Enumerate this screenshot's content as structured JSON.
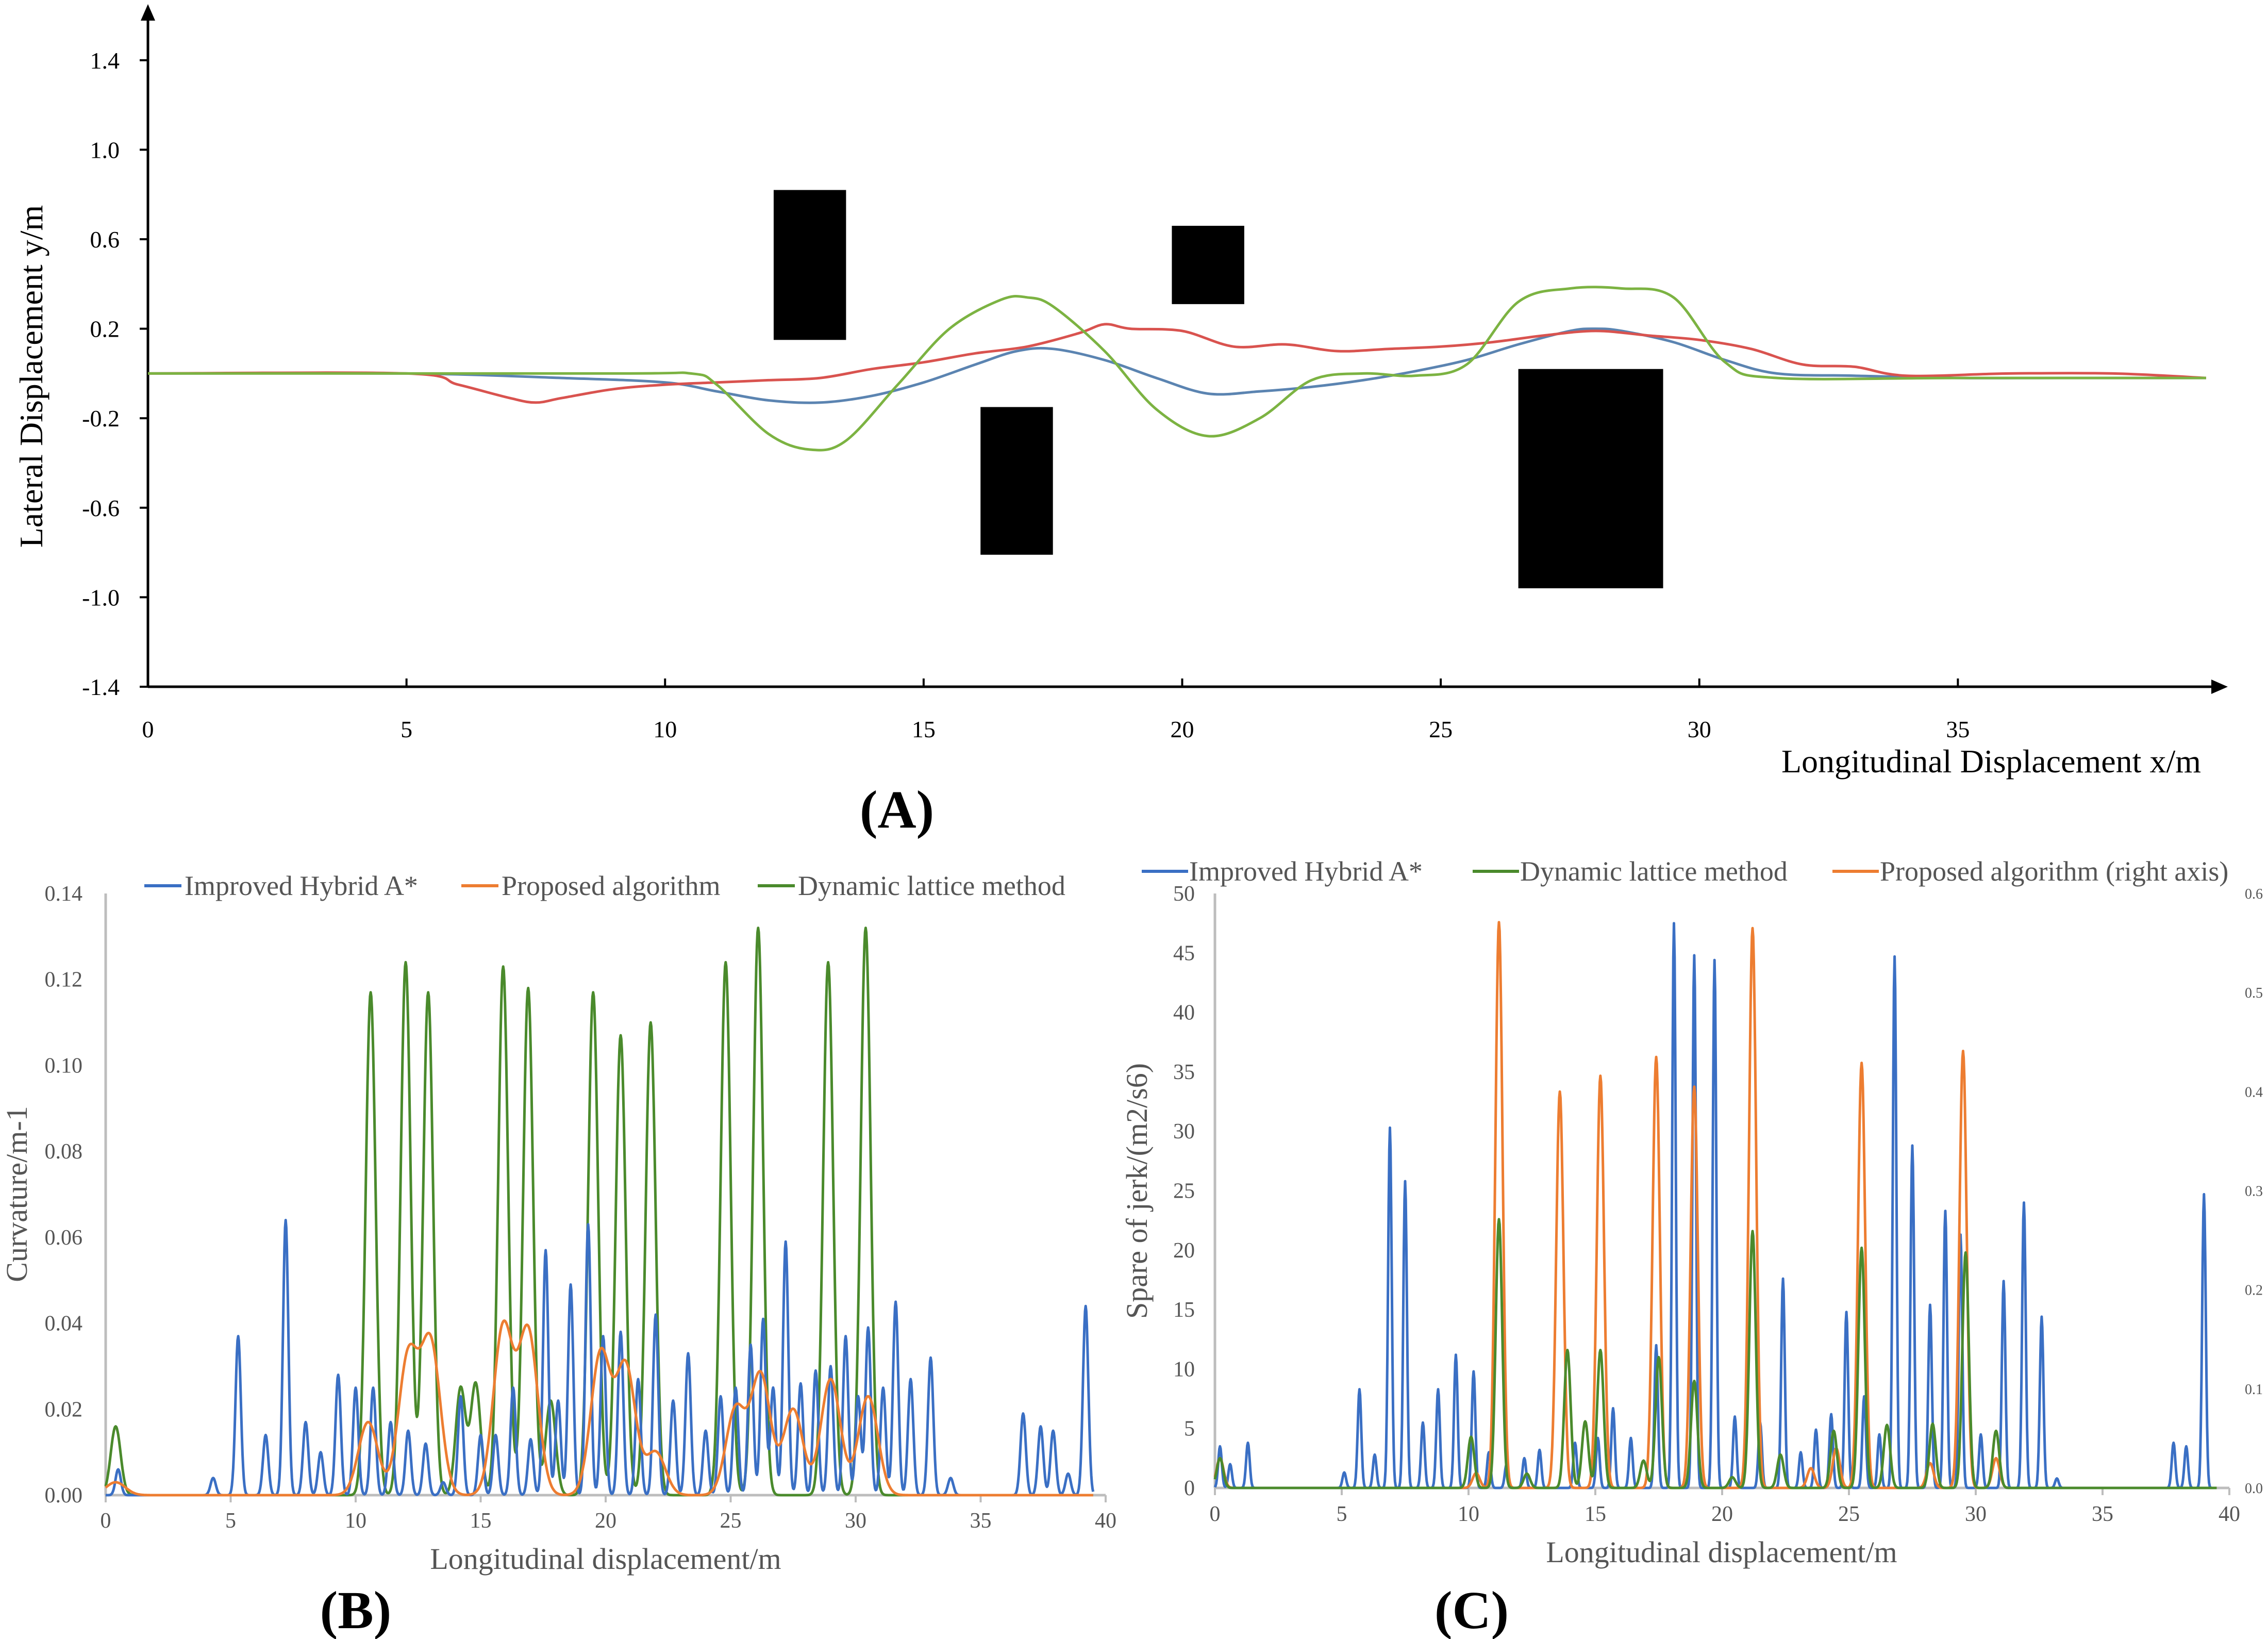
{
  "colors": {
    "hybrid_a_path": "#5b84b1",
    "proposed_path": "#d9534f",
    "lattice_path": "#7cb342",
    "blue": "#3a6fc4",
    "orange": "#ed7d31",
    "green": "#4a8a2c",
    "obstacle": "#000000"
  },
  "chart_data": [
    {
      "id": "A",
      "type": "line",
      "panel_label": "(A)",
      "xlabel": "Longitudinal Displacement  x/m",
      "ylabel": "Lateral Displacement  y/m",
      "xlim": [
        0,
        40
      ],
      "ylim": [
        -1.4,
        1.6
      ],
      "x_ticks": [
        "0",
        "5",
        "10",
        "15",
        "20",
        "25",
        "30",
        "35"
      ],
      "y_ticks": [
        "-1.4",
        "-1.0",
        "-0.6",
        "-0.2",
        "0.2",
        "0.6",
        "1.0",
        "1.4"
      ],
      "obstacles": [
        {
          "x0": 12.1,
          "x1": 13.5,
          "y0": 0.15,
          "y1": 0.82
        },
        {
          "x0": 16.1,
          "x1": 17.5,
          "y0": -0.81,
          "y1": -0.15
        },
        {
          "x0": 19.8,
          "x1": 21.2,
          "y0": 0.31,
          "y1": 0.66
        },
        {
          "x0": 26.5,
          "x1": 29.3,
          "y0": -0.96,
          "y1": 0.02
        }
      ],
      "series": [
        {
          "name": "Improved Hybrid A*",
          "color": "#5b84b1",
          "x": [
            0,
            5,
            8,
            10,
            11,
            12,
            13,
            14,
            15,
            16,
            16.8,
            17.5,
            18.5,
            19.5,
            20.5,
            21.5,
            22.5,
            23.5,
            24.5,
            25.5,
            26.5,
            27.5,
            28,
            28.5,
            29.5,
            30.5,
            31.5,
            33,
            35,
            37,
            39.8
          ],
          "y": [
            0,
            0,
            -0.02,
            -0.04,
            -0.08,
            -0.12,
            -0.13,
            -0.1,
            -0.04,
            0.04,
            0.1,
            0.11,
            0.06,
            -0.02,
            -0.09,
            -0.08,
            -0.06,
            -0.03,
            0.01,
            0.06,
            0.13,
            0.19,
            0.2,
            0.19,
            0.14,
            0.06,
            0.0,
            -0.01,
            -0.02,
            -0.02,
            -0.02
          ]
        },
        {
          "name": "Proposed algorithm",
          "color": "#d9534f",
          "x": [
            0,
            5,
            6,
            7,
            7.5,
            8,
            9,
            10,
            11,
            12,
            13,
            14,
            15,
            16,
            17,
            18,
            18.5,
            19,
            20,
            21,
            22,
            23,
            24,
            25,
            26,
            27,
            28,
            29,
            30,
            31,
            32,
            33,
            34,
            36,
            38,
            39.8
          ],
          "y": [
            0,
            0,
            -0.05,
            -0.11,
            -0.13,
            -0.11,
            -0.07,
            -0.05,
            -0.04,
            -0.03,
            -0.02,
            0.02,
            0.05,
            0.09,
            0.12,
            0.18,
            0.22,
            0.2,
            0.19,
            0.12,
            0.13,
            0.1,
            0.11,
            0.12,
            0.14,
            0.17,
            0.19,
            0.17,
            0.15,
            0.11,
            0.04,
            0.03,
            -0.01,
            0.0,
            0.0,
            -0.02
          ]
        },
        {
          "name": "Dynamic lattice method",
          "color": "#7cb342",
          "x": [
            0,
            9,
            10.5,
            11,
            12,
            12.8,
            13.5,
            14.5,
            15.5,
            16.5,
            17,
            17.5,
            18.5,
            19.5,
            20.5,
            21.5,
            22.5,
            23.5,
            24.5,
            25.5,
            26.5,
            27.5,
            28.5,
            29.5,
            30.5,
            31.5,
            35,
            39.8
          ],
          "y": [
            0,
            0,
            0.0,
            -0.05,
            -0.27,
            -0.34,
            -0.3,
            -0.05,
            0.2,
            0.33,
            0.34,
            0.3,
            0.1,
            -0.16,
            -0.28,
            -0.2,
            -0.03,
            0.0,
            -0.01,
            0.04,
            0.32,
            0.38,
            0.38,
            0.34,
            0.05,
            -0.02,
            -0.02,
            -0.02
          ]
        }
      ]
    },
    {
      "id": "B",
      "type": "line",
      "panel_label": "(B)",
      "xlabel": "Longitudinal displacement/m",
      "ylabel": "Curvature/m-1",
      "xlim": [
        0,
        40
      ],
      "ylim": [
        0,
        0.14
      ],
      "x_ticks": [
        "0",
        "5",
        "10",
        "15",
        "20",
        "25",
        "30",
        "35",
        "40"
      ],
      "y_ticks": [
        "0.00",
        "0.02",
        "0.04",
        "0.06",
        "0.08",
        "0.10",
        "0.12",
        "0.14"
      ],
      "legend": [
        "Improved Hybrid A*",
        "Proposed algorithm",
        "Dynamic lattice method"
      ],
      "series": [
        {
          "name": "Improved Hybrid A*",
          "color": "#3a6fc4",
          "width": 0.15,
          "peaks": [
            [
              0.5,
              0.006
            ],
            [
              4.3,
              0.004
            ],
            [
              5.3,
              0.037
            ],
            [
              6.4,
              0.014
            ],
            [
              7.2,
              0.064
            ],
            [
              8.0,
              0.017
            ],
            [
              8.6,
              0.01
            ],
            [
              9.3,
              0.028
            ],
            [
              10.0,
              0.025
            ],
            [
              10.7,
              0.025
            ],
            [
              11.4,
              0.017
            ],
            [
              12.1,
              0.015
            ],
            [
              12.8,
              0.012
            ],
            [
              13.5,
              0.003
            ],
            [
              14.2,
              0.023
            ],
            [
              15.0,
              0.014
            ],
            [
              15.6,
              0.014
            ],
            [
              16.3,
              0.025
            ],
            [
              17.0,
              0.013
            ],
            [
              17.6,
              0.057
            ],
            [
              18.1,
              0.022
            ],
            [
              18.6,
              0.049
            ],
            [
              19.3,
              0.063
            ],
            [
              19.9,
              0.037
            ],
            [
              20.6,
              0.038
            ],
            [
              21.3,
              0.027
            ],
            [
              22.0,
              0.042
            ],
            [
              22.7,
              0.022
            ],
            [
              23.3,
              0.033
            ],
            [
              24.0,
              0.015
            ],
            [
              24.6,
              0.023
            ],
            [
              25.2,
              0.025
            ],
            [
              25.8,
              0.035
            ],
            [
              26.3,
              0.041
            ],
            [
              26.7,
              0.025
            ],
            [
              27.2,
              0.059
            ],
            [
              27.8,
              0.026
            ],
            [
              28.4,
              0.029
            ],
            [
              29.0,
              0.03
            ],
            [
              29.6,
              0.037
            ],
            [
              30.1,
              0.023
            ],
            [
              30.5,
              0.039
            ],
            [
              31.1,
              0.025
            ],
            [
              31.6,
              0.045
            ],
            [
              32.2,
              0.027
            ],
            [
              33.0,
              0.032
            ],
            [
              33.8,
              0.004
            ],
            [
              36.7,
              0.019
            ],
            [
              37.4,
              0.016
            ],
            [
              37.9,
              0.015
            ],
            [
              38.5,
              0.005
            ],
            [
              39.2,
              0.044
            ]
          ]
        },
        {
          "name": "Proposed algorithm",
          "color": "#ed7d31",
          "width": 0.55,
          "peaks": [
            [
              0.4,
              0.003
            ],
            [
              10.5,
              0.017
            ],
            [
              12.1,
              0.032
            ],
            [
              13.0,
              0.035
            ],
            [
              15.9,
              0.039
            ],
            [
              16.9,
              0.038
            ],
            [
              19.8,
              0.033
            ],
            [
              20.8,
              0.03
            ],
            [
              22.0,
              0.01
            ],
            [
              25.2,
              0.02
            ],
            [
              26.2,
              0.028
            ],
            [
              27.5,
              0.02
            ],
            [
              29.0,
              0.027
            ],
            [
              30.5,
              0.023
            ]
          ]
        },
        {
          "name": "Dynamic lattice method",
          "color": "#4a8a2c",
          "width": 0.28,
          "peaks": [
            [
              0.4,
              0.016
            ],
            [
              10.6,
              0.117
            ],
            [
              12.0,
              0.124
            ],
            [
              12.9,
              0.117
            ],
            [
              14.2,
              0.025
            ],
            [
              14.8,
              0.026
            ],
            [
              15.9,
              0.123
            ],
            [
              16.9,
              0.118
            ],
            [
              17.8,
              0.022
            ],
            [
              19.5,
              0.117
            ],
            [
              20.6,
              0.107
            ],
            [
              21.8,
              0.11
            ],
            [
              24.8,
              0.124
            ],
            [
              26.1,
              0.132
            ],
            [
              28.9,
              0.124
            ],
            [
              30.4,
              0.132
            ]
          ]
        }
      ]
    },
    {
      "id": "C",
      "type": "line",
      "panel_label": "(C)",
      "xlabel": "Longitudinal displacement/m",
      "ylabel": "Spare of jerk/(m2/s6)",
      "xlim": [
        0,
        40
      ],
      "ylim": [
        0,
        50
      ],
      "y2lim": [
        0,
        0.6
      ],
      "x_ticks": [
        "0",
        "5",
        "10",
        "15",
        "20",
        "25",
        "30",
        "35",
        "40"
      ],
      "y_ticks": [
        "0",
        "5",
        "10",
        "15",
        "20",
        "25",
        "30",
        "35",
        "40",
        "45",
        "50"
      ],
      "y2_ticks": [
        "0.0",
        "0.1",
        "0.2",
        "0.3",
        "0.4",
        "0.5",
        "0.6"
      ],
      "legend": [
        "Improved Hybrid A*",
        "Dynamic lattice method",
        "Proposed algorithm (right axis)"
      ],
      "series": [
        {
          "name": "Improved Hybrid A*",
          "color": "#3a6fc4",
          "width": 0.1,
          "axis": "left",
          "peaks": [
            [
              0.2,
              3.5
            ],
            [
              0.6,
              2
            ],
            [
              1.3,
              3.8
            ],
            [
              5.1,
              1.3
            ],
            [
              5.7,
              8.3
            ],
            [
              6.3,
              2.8
            ],
            [
              6.9,
              30.3
            ],
            [
              7.5,
              25.8
            ],
            [
              8.2,
              5.5
            ],
            [
              8.8,
              8.3
            ],
            [
              9.5,
              11.2
            ],
            [
              10.2,
              9.8
            ],
            [
              10.8,
              3.0
            ],
            [
              11.5,
              2
            ],
            [
              12.2,
              2.5
            ],
            [
              12.8,
              3.2
            ],
            [
              14.2,
              3.8
            ],
            [
              15.1,
              4.2
            ],
            [
              15.7,
              6.7
            ],
            [
              16.4,
              4.2
            ],
            [
              17.4,
              12.0
            ],
            [
              18.1,
              47.5
            ],
            [
              18.9,
              44.8
            ],
            [
              19.7,
              44.4
            ],
            [
              20.5,
              6
            ],
            [
              21.5,
              5.5
            ],
            [
              22.4,
              17.6
            ],
            [
              23.1,
              3.0
            ],
            [
              23.7,
              4.9
            ],
            [
              24.3,
              6.2
            ],
            [
              24.9,
              14.8
            ],
            [
              25.6,
              7.7
            ],
            [
              26.2,
              4.5
            ],
            [
              26.8,
              44.7
            ],
            [
              27.5,
              28.8
            ],
            [
              28.2,
              15.4
            ],
            [
              28.8,
              23.3
            ],
            [
              29.4,
              21.3
            ],
            [
              30.2,
              4.5
            ],
            [
              31.1,
              17.4
            ],
            [
              31.9,
              24.0
            ],
            [
              32.6,
              14.4
            ],
            [
              33.2,
              0.8
            ],
            [
              37.8,
              3.8
            ],
            [
              38.3,
              3.5
            ],
            [
              39.0,
              24.7
            ]
          ]
        },
        {
          "name": "Dynamic lattice method",
          "color": "#4a8a2c",
          "width": 0.18,
          "axis": "left",
          "peaks": [
            [
              0.2,
              2.5
            ],
            [
              10.1,
              4.3
            ],
            [
              11.2,
              22.6
            ],
            [
              12.3,
              1.2
            ],
            [
              13.9,
              11.6
            ],
            [
              14.6,
              5.6
            ],
            [
              15.2,
              11.6
            ],
            [
              16.9,
              2.3
            ],
            [
              17.5,
              11.0
            ],
            [
              18.9,
              9.0
            ],
            [
              20.4,
              0.9
            ],
            [
              21.2,
              21.6
            ],
            [
              22.3,
              2.8
            ],
            [
              24.4,
              4.8
            ],
            [
              25.5,
              20.2
            ],
            [
              26.5,
              5.3
            ],
            [
              28.3,
              5.4
            ],
            [
              29.6,
              19.8
            ],
            [
              30.8,
              4.8
            ]
          ]
        },
        {
          "name": "Proposed algorithm (right axis)",
          "color": "#ed7d31",
          "width": 0.2,
          "axis": "right",
          "peaks": [
            [
              0.2,
              0.03
            ],
            [
              10.3,
              0.015
            ],
            [
              11.2,
              0.571
            ],
            [
              13.6,
              0.4
            ],
            [
              15.2,
              0.416
            ],
            [
              17.4,
              0.435
            ],
            [
              18.9,
              0.405
            ],
            [
              21.2,
              0.565
            ],
            [
              23.5,
              0.02
            ],
            [
              24.5,
              0.04
            ],
            [
              25.5,
              0.429
            ],
            [
              28.2,
              0.025
            ],
            [
              29.5,
              0.441
            ],
            [
              30.8,
              0.03
            ]
          ]
        }
      ]
    }
  ]
}
